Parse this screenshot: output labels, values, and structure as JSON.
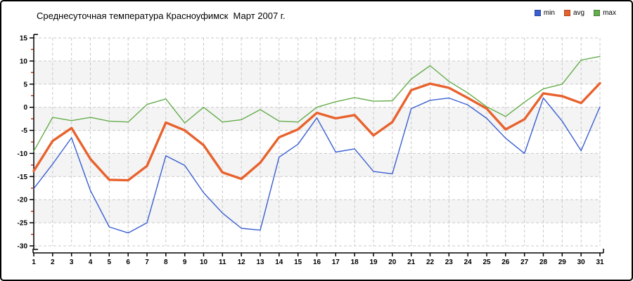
{
  "chart_data": {
    "type": "line",
    "title": "Среднесуточная температура Красноуфимск  Март 2007 г.",
    "xlabel": "",
    "ylabel": "",
    "x": [
      1,
      2,
      3,
      4,
      5,
      6,
      7,
      8,
      9,
      10,
      11,
      12,
      13,
      14,
      15,
      16,
      17,
      18,
      19,
      20,
      21,
      22,
      23,
      24,
      25,
      26,
      27,
      28,
      29,
      30,
      31
    ],
    "series": [
      {
        "name": "min",
        "color": "#3a5fd0",
        "width": 1.4,
        "values": [
          -17.6,
          -12.3,
          -6.6,
          -18.0,
          -25.9,
          -27.2,
          -25.0,
          -10.5,
          -12.6,
          -18.5,
          -22.9,
          -26.2,
          -26.6,
          -10.8,
          -8.0,
          -2.3,
          -9.7,
          -9.0,
          -13.9,
          -14.4,
          -0.3,
          1.5,
          2.0,
          0.5,
          -2.4,
          -6.7,
          -10.0,
          2.0,
          -3.0,
          -9.4,
          0.1
        ]
      },
      {
        "name": "avg",
        "color": "#e8622d",
        "width": 3.4,
        "values": [
          -13.8,
          -7.3,
          -4.5,
          -11.2,
          -15.7,
          -15.8,
          -12.7,
          -3.3,
          -5.0,
          -8.2,
          -14.1,
          -15.5,
          -12.0,
          -6.5,
          -4.8,
          -1.2,
          -2.4,
          -1.7,
          -6.1,
          -3.2,
          3.7,
          5.1,
          4.2,
          2.0,
          -0.3,
          -4.8,
          -2.6,
          3.0,
          2.4,
          0.9,
          5.2
        ]
      },
      {
        "name": "max",
        "color": "#65ad4c",
        "width": 1.4,
        "values": [
          -9.5,
          -2.2,
          -2.9,
          -2.2,
          -3.0,
          -3.2,
          0.6,
          1.8,
          -3.4,
          0.0,
          -3.2,
          -2.7,
          -0.5,
          -3.0,
          -3.2,
          0.0,
          1.2,
          2.1,
          1.3,
          1.4,
          6.1,
          9.0,
          5.6,
          3.1,
          0.1,
          -2.0,
          1.1,
          4.0,
          5.0,
          10.2,
          11.0
        ]
      }
    ],
    "ylim": [
      -30,
      15
    ],
    "ytick_step": 5,
    "grid": true,
    "legend_position": "top-right",
    "bands": [
      [
        10,
        5
      ],
      [
        0,
        -5
      ],
      [
        -10,
        -15
      ],
      [
        -20,
        -25
      ]
    ],
    "band_color": "#f4f4f4",
    "grid_color": "#c9c9c9",
    "axis_color": "#000000",
    "minor_tick_color": "#cc3322"
  }
}
